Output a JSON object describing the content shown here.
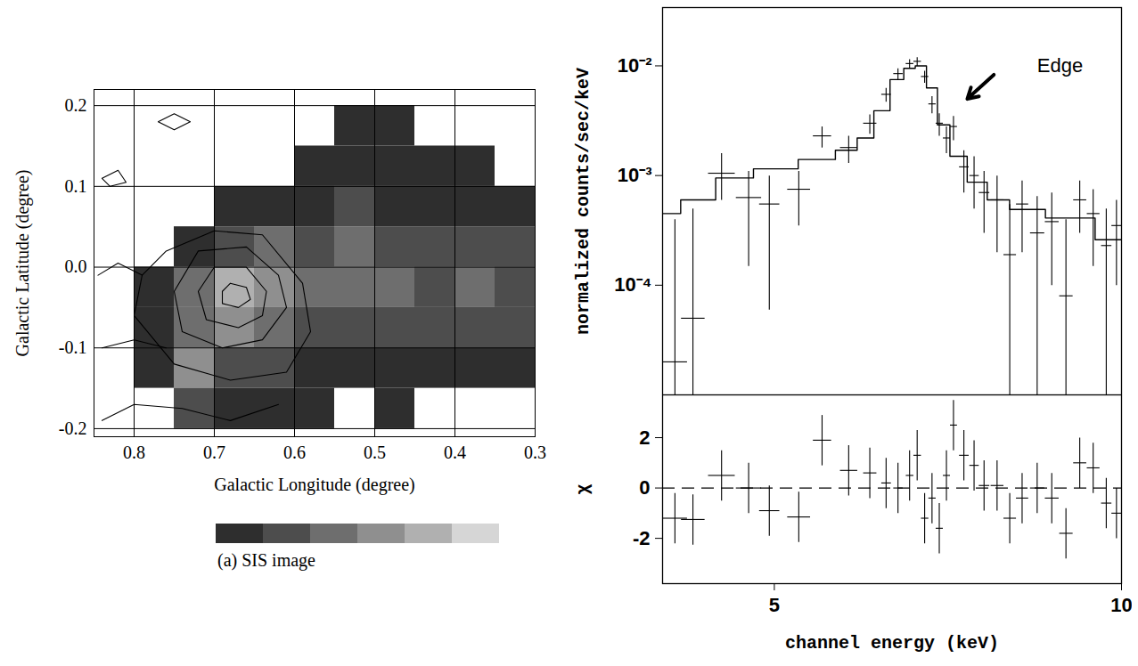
{
  "chart_data": [
    {
      "type": "heatmap",
      "title": "(a) SIS image",
      "xlabel": "Galactic Longitude (degree)",
      "ylabel": "Galactic Latitude (degree)",
      "xlim": [
        0.85,
        0.3
      ],
      "ylim": [
        -0.21,
        0.22
      ],
      "xticks": [
        0.8,
        0.7,
        0.6,
        0.5,
        0.4,
        0.3
      ],
      "yticks": [
        -0.2,
        -0.1,
        {
          "value": 0,
          "label": "0.0"
        },
        0.1,
        0.2
      ],
      "grid": true,
      "colors": [
        "#2e2e2e",
        "#4d4d4d",
        "#6e6e6e",
        "#8f8f8f",
        "#b0b0b0",
        "#d6d6d6"
      ],
      "x_edges": [
        0.8,
        0.75,
        0.7,
        0.65,
        0.6,
        0.55,
        0.5,
        0.45,
        0.4,
        0.35,
        0.3
      ],
      "y_edges": [
        0.2,
        0.15,
        0.1,
        0.05,
        0,
        -0.05,
        -0.1,
        -0.15,
        -0.2
      ],
      "cells": [
        [
          null,
          null,
          null,
          null,
          null,
          1,
          1,
          null,
          null,
          null
        ],
        [
          null,
          null,
          null,
          null,
          1,
          1,
          1,
          1,
          1,
          null
        ],
        [
          null,
          null,
          1,
          1,
          1,
          2,
          1,
          1,
          1,
          1
        ],
        [
          null,
          1,
          2,
          3,
          2,
          3,
          2,
          2,
          2,
          2
        ],
        [
          1,
          3,
          5,
          4,
          3,
          3,
          3,
          2,
          3,
          2
        ],
        [
          1,
          3,
          4,
          3,
          2,
          2,
          2,
          2,
          2,
          2
        ],
        [
          1,
          4,
          2,
          2,
          1,
          1,
          1,
          1,
          1,
          1
        ],
        [
          null,
          2,
          1,
          1,
          1,
          null,
          1,
          null,
          null,
          null
        ]
      ],
      "contours": [
        [
          [
            0.69,
            -0.03
          ],
          [
            0.68,
            -0.02
          ],
          [
            0.66,
            -0.025
          ],
          [
            0.655,
            -0.04
          ],
          [
            0.67,
            -0.05
          ],
          [
            0.69,
            -0.045
          ],
          [
            0.69,
            -0.03
          ]
        ],
        [
          [
            0.72,
            -0.03
          ],
          [
            0.7,
            0.0
          ],
          [
            0.66,
            0.0
          ],
          [
            0.635,
            -0.03
          ],
          [
            0.64,
            -0.06
          ],
          [
            0.67,
            -0.075
          ],
          [
            0.71,
            -0.065
          ],
          [
            0.72,
            -0.03
          ]
        ],
        [
          [
            0.75,
            -0.03
          ],
          [
            0.72,
            0.02
          ],
          [
            0.66,
            0.025
          ],
          [
            0.62,
            -0.01
          ],
          [
            0.61,
            -0.05
          ],
          [
            0.64,
            -0.09
          ],
          [
            0.69,
            -0.1
          ],
          [
            0.74,
            -0.08
          ],
          [
            0.75,
            -0.03
          ]
        ],
        [
          [
            0.79,
            -0.01
          ],
          [
            0.76,
            0.02
          ],
          [
            0.7,
            0.045
          ],
          [
            0.64,
            0.04
          ],
          [
            0.59,
            -0.02
          ],
          [
            0.58,
            -0.08
          ],
          [
            0.61,
            -0.13
          ],
          [
            0.68,
            -0.14
          ],
          [
            0.75,
            -0.12
          ],
          [
            0.8,
            -0.06
          ],
          [
            0.79,
            -0.01
          ]
        ],
        [
          [
            0.845,
            -0.01
          ],
          [
            0.82,
            0.005
          ],
          [
            0.79,
            -0.01
          ]
        ],
        [
          [
            0.77,
            0.18
          ],
          [
            0.75,
            0.19
          ],
          [
            0.73,
            0.18
          ],
          [
            0.75,
            0.17
          ],
          [
            0.77,
            0.18
          ]
        ],
        [
          [
            0.84,
            0.11
          ],
          [
            0.82,
            0.12
          ],
          [
            0.81,
            0.105
          ],
          [
            0.83,
            0.1
          ],
          [
            0.84,
            0.11
          ]
        ],
        [
          [
            0.84,
            -0.1
          ],
          [
            0.8,
            -0.09
          ],
          [
            0.76,
            -0.1
          ]
        ],
        [
          [
            0.84,
            -0.19
          ],
          [
            0.8,
            -0.17
          ],
          [
            0.74,
            -0.175
          ],
          [
            0.68,
            -0.19
          ],
          [
            0.62,
            -0.17
          ]
        ]
      ]
    },
    {
      "type": "line",
      "xlabel": "channel energy (keV)",
      "ylabel": "normalized counts/sec/keV",
      "log": true,
      "xlim": [
        4,
        10
      ],
      "ylim": [
        1e-05,
        0.034
      ],
      "xticks": [
        5,
        10
      ],
      "yticks": [
        {
          "value": 0.0001,
          "label": "10⁻⁴"
        },
        {
          "value": 0.001,
          "label": "10⁻³"
        },
        {
          "value": 0.01,
          "label": "10⁻²"
        }
      ],
      "model": {
        "x": [
          4.0,
          4.3,
          4.6,
          5.0,
          5.5,
          5.8,
          6.0,
          6.2,
          6.4,
          6.55,
          6.7,
          6.85,
          7.0,
          7.2,
          7.5,
          7.8,
          8.2,
          9.0,
          10.0
        ],
        "values": [
          0.00045,
          0.0006,
          0.00095,
          0.00115,
          0.0014,
          0.0017,
          0.0022,
          0.0039,
          0.0075,
          0.0095,
          0.01,
          0.0063,
          0.0029,
          0.0015,
          0.00087,
          0.0006,
          0.00049,
          0.00041,
          0.00026
        ]
      },
      "data": {
        "x": [
          4.1,
          4.25,
          4.5,
          4.75,
          4.95,
          5.25,
          5.5,
          5.8,
          6.05,
          6.25,
          6.4,
          6.55,
          6.65,
          6.75,
          6.85,
          6.95,
          7.05,
          7.15,
          7.3,
          7.45,
          7.6,
          7.8,
          8.0,
          8.2,
          8.45,
          8.7,
          8.95,
          9.2,
          9.45,
          9.7,
          9.9
        ],
        "values": [
          2e-05,
          5e-05,
          0.00105,
          0.00063,
          0.00055,
          0.00075,
          0.0023,
          0.0018,
          0.003,
          0.0055,
          0.0085,
          0.0105,
          0.011,
          0.008,
          0.0045,
          0.003,
          0.0022,
          0.0028,
          0.0012,
          0.001,
          0.0007,
          0.0006,
          0.00019,
          0.00055,
          0.0003,
          0.00038,
          8e-05,
          0.0006,
          0.00045,
          0.00023,
          0.00035
        ],
        "y_low": [
          1e-06,
          1e-06,
          0.0006,
          0.00015,
          6e-05,
          0.00035,
          0.0018,
          0.0013,
          0.0024,
          0.0047,
          0.0075,
          0.0095,
          0.01,
          0.007,
          0.0037,
          0.0023,
          0.0016,
          0.0021,
          0.0007,
          0.0005,
          0.0003,
          0.0002,
          1e-06,
          0.0002,
          1e-06,
          0.0001,
          1e-06,
          0.0003,
          0.00015,
          1e-06,
          0.0001
        ],
        "y_high": [
          0.0004,
          0.0005,
          0.0016,
          0.0011,
          0.001,
          0.0011,
          0.0028,
          0.0023,
          0.0036,
          0.0063,
          0.0095,
          0.0115,
          0.012,
          0.009,
          0.0053,
          0.0037,
          0.0028,
          0.0035,
          0.0017,
          0.0015,
          0.0011,
          0.001,
          0.00055,
          0.0009,
          0.00065,
          0.0007,
          0.0004,
          0.0009,
          0.00075,
          0.0005,
          0.0006
        ],
        "x_err": [
          0.1,
          0.1,
          0.12,
          0.12,
          0.1,
          0.12,
          0.1,
          0.1,
          0.08,
          0.06,
          0.06,
          0.05,
          0.05,
          0.05,
          0.05,
          0.05,
          0.05,
          0.05,
          0.07,
          0.07,
          0.08,
          0.1,
          0.1,
          0.1,
          0.12,
          0.12,
          0.12,
          0.12,
          0.12,
          0.1,
          0.1
        ]
      },
      "annotations": [
        {
          "text": "Edge",
          "x": 8.45,
          "y": 0.01,
          "arrow_from": [
            7.75,
            0.0083
          ],
          "arrow_to": [
            7.35,
            0.005
          ]
        }
      ],
      "residuals": {
        "ylabel": "χ",
        "ylim": [
          -3.8,
          3.7
        ],
        "yticks": [
          -2,
          0,
          2
        ],
        "baseline": 0,
        "values": [
          -1.2,
          -1.25,
          0.5,
          0,
          -0.9,
          -1.15,
          1.9,
          0.7,
          0.6,
          0.2,
          0,
          0.5,
          1.3,
          -1.2,
          -0.4,
          -1.6,
          0.5,
          2.5,
          1.3,
          0.9,
          0.1,
          0.1,
          -1.2,
          -0.4,
          0,
          -0.4,
          -1.8,
          1.0,
          0.8,
          -0.6,
          -1.0
        ],
        "errors": [
          1,
          1,
          1,
          1,
          1,
          1,
          1,
          1,
          1,
          1,
          1,
          1,
          1,
          1,
          1,
          1,
          1,
          1,
          1,
          1,
          1,
          1,
          1,
          1,
          1,
          1,
          1,
          1,
          1,
          1,
          1
        ]
      }
    }
  ]
}
